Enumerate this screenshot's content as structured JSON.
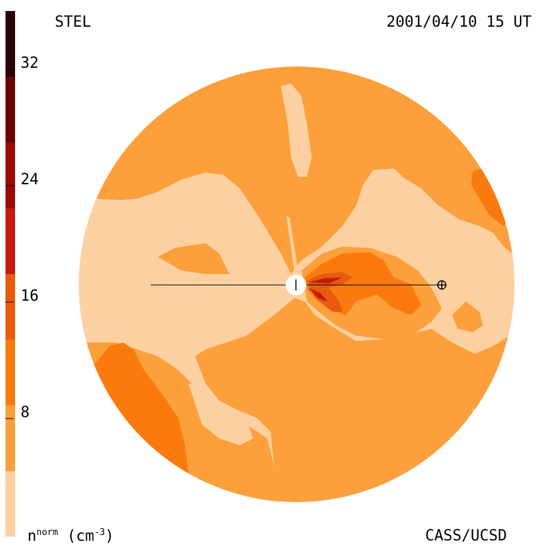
{
  "header": {
    "instrument": "STEL",
    "timestamp": "2001/04/10 15 UT"
  },
  "footer": {
    "credit": "CASS/UCSD",
    "unit_main": "n",
    "unit_sup": "norm",
    "unit_rest": " (cm",
    "unit_exp": "-3",
    "unit_close": ")"
  },
  "colorbar": {
    "ticks": [
      "32",
      "24",
      "16",
      "8"
    ],
    "colors": [
      "#fdd0a2",
      "#fd9f3a",
      "#fb7a0e",
      "#e85a10",
      "#c31c0e",
      "#9a0a06",
      "#6a0505",
      "#2b0505"
    ]
  },
  "map": {
    "colors": {
      "level1": "#fdd0a2",
      "level2": "#fd9f3a",
      "level3": "#fb7a0e",
      "level4": "#e85a10",
      "level5": "#c31c0e",
      "level6": "#9a0a06"
    },
    "markers": [
      "sun-marker",
      "earth-marker"
    ]
  }
}
